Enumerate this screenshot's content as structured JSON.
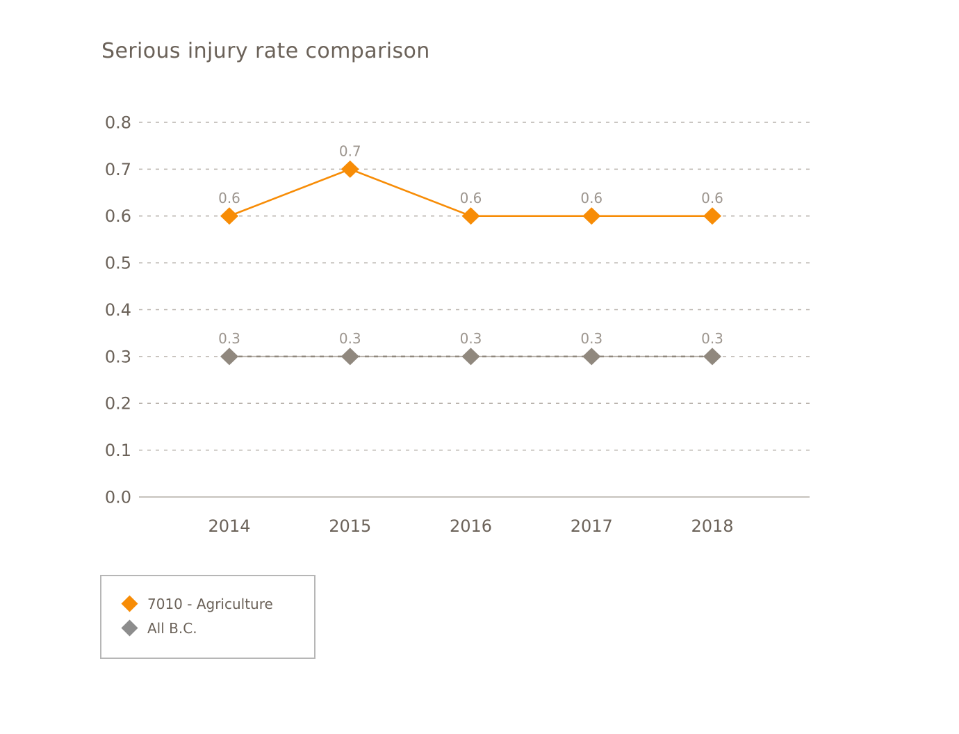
{
  "page": {
    "title": "Serious injury rate comparison"
  },
  "chart_data": {
    "type": "line",
    "title": "Serious injury rate comparison",
    "x": [
      "2014",
      "2015",
      "2016",
      "2017",
      "2018"
    ],
    "series": [
      {
        "name": "7010 - Agriculture",
        "values": [
          0.6,
          0.7,
          0.6,
          0.6,
          0.6
        ],
        "color": "#f78c06",
        "marker": "diamond"
      },
      {
        "name": "All B.C.",
        "values": [
          0.3,
          0.3,
          0.3,
          0.3,
          0.3
        ],
        "color": "#90887e",
        "marker": "diamond"
      }
    ],
    "xlabel": "",
    "ylabel": "",
    "ylim": [
      0.0,
      0.8
    ],
    "ytick_step": 0.1,
    "ytick_labels": [
      "0.0",
      "0.1",
      "0.2",
      "0.3",
      "0.4",
      "0.5",
      "0.6",
      "0.7",
      "0.8"
    ],
    "grid": "horizontal-dashed",
    "data_labels": true,
    "legend_position": "bottom-left"
  },
  "colors": {
    "accent_orange": "#f78c06",
    "series_gray": "#90887e",
    "series_gray_underlay": "#b7b1aa",
    "legend_gray": "#8d8d8d",
    "text": "#6b6259",
    "data_label": "#9c958e",
    "gridline": "#b9b3ad",
    "axis_line": "#b3ada7",
    "legend_border": "#b6b6b6"
  }
}
